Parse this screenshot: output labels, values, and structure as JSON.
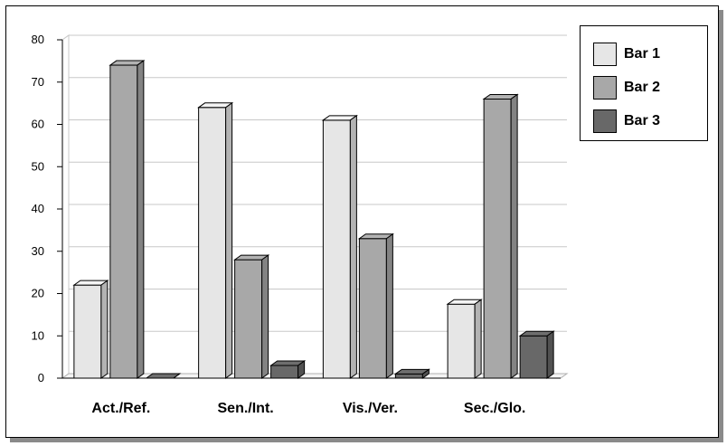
{
  "chart_data": {
    "type": "bar",
    "categories": [
      "Act./Ref.",
      "Sen./Int.",
      "Vis./Ver.",
      "Sec./Glo."
    ],
    "series": [
      {
        "name": "Bar 1",
        "values": [
          22,
          64,
          61,
          17.5
        ],
        "color": "#e6e6e6"
      },
      {
        "name": "Bar 2",
        "values": [
          74,
          28,
          33,
          66
        ],
        "color": "#a8a8a8"
      },
      {
        "name": "Bar 3",
        "values": [
          0,
          3,
          1,
          10
        ],
        "color": "#686868"
      }
    ],
    "ylim": [
      0,
      80
    ],
    "yticks": [
      0,
      10,
      20,
      30,
      40,
      50,
      60,
      70,
      80
    ],
    "grid": true,
    "legend": "right",
    "three_d": true
  }
}
